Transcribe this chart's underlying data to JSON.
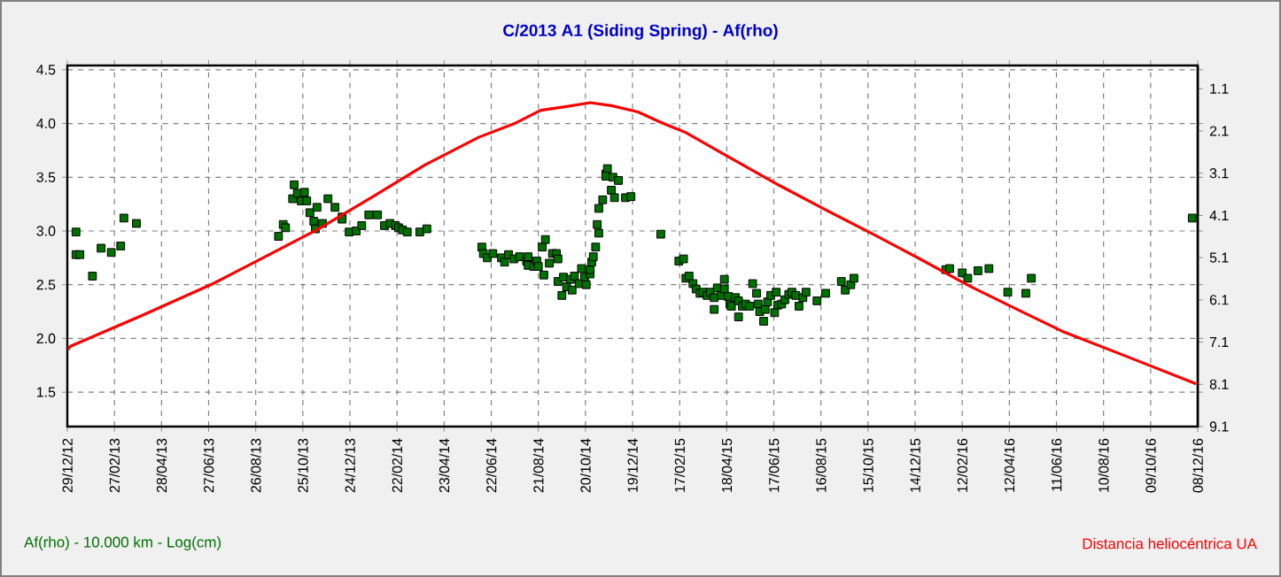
{
  "chart_data": {
    "type": "scatter",
    "title": "C/2013 A1 (Siding Spring) - Af(rho)",
    "legend": "bottom",
    "xlim": [
      "2012-12-29",
      "2016-12-08"
    ],
    "xticks": [
      {
        "value": "2012-12-29",
        "label": "29/12/12"
      },
      {
        "value": "2013-02-27",
        "label": "27/02/13"
      },
      {
        "value": "2013-04-28",
        "label": "28/04/13"
      },
      {
        "value": "2013-06-27",
        "label": "27/06/13"
      },
      {
        "value": "2013-08-26",
        "label": "26/08/13"
      },
      {
        "value": "2013-10-25",
        "label": "25/10/13"
      },
      {
        "value": "2013-12-24",
        "label": "24/12/13"
      },
      {
        "value": "2014-02-22",
        "label": "22/02/14"
      },
      {
        "value": "2014-04-23",
        "label": "23/04/14"
      },
      {
        "value": "2014-06-22",
        "label": "22/06/14"
      },
      {
        "value": "2014-08-21",
        "label": "21/08/14"
      },
      {
        "value": "2014-10-20",
        "label": "20/10/14"
      },
      {
        "value": "2014-12-19",
        "label": "19/12/14"
      },
      {
        "value": "2015-02-17",
        "label": "17/02/15"
      },
      {
        "value": "2015-04-18",
        "label": "18/04/15"
      },
      {
        "value": "2015-06-17",
        "label": "17/06/15"
      },
      {
        "value": "2015-08-16",
        "label": "16/08/15"
      },
      {
        "value": "2015-10-15",
        "label": "15/10/15"
      },
      {
        "value": "2015-12-14",
        "label": "14/12/15"
      },
      {
        "value": "2016-02-12",
        "label": "12/02/16"
      },
      {
        "value": "2016-04-12",
        "label": "12/04/16"
      },
      {
        "value": "2016-06-11",
        "label": "11/06/16"
      },
      {
        "value": "2016-08-10",
        "label": "10/08/16"
      },
      {
        "value": "2016-10-09",
        "label": "09/10/16"
      },
      {
        "value": "2016-12-08",
        "label": "08/12/16"
      }
    ],
    "ylim": [
      1.18,
      4.54
    ],
    "yticks": [
      {
        "value": 1.5,
        "label": "1.5"
      },
      {
        "value": 2,
        "label": "2.0"
      },
      {
        "value": 2.5,
        "label": "2.5"
      },
      {
        "value": 3,
        "label": "3.0"
      },
      {
        "value": 3.5,
        "label": "3.5"
      },
      {
        "value": 4,
        "label": "4.0"
      },
      {
        "value": 4.5,
        "label": "4.5"
      }
    ],
    "y2lim": [
      9.1,
      0.55
    ],
    "y2ticks": [
      1.1,
      2.1,
      3.1,
      4.1,
      5.1,
      6.1,
      7.1,
      8.1,
      9.1
    ],
    "grid": true,
    "series": [
      {
        "name": "Af(rho) - 10.000 km - Log(cm)",
        "marker": "square",
        "color": "#007000",
        "x": [
          "2013-01-09",
          "2013-01-09",
          "2013-01-14",
          "2013-01-30",
          "2013-02-10",
          "2013-02-23",
          "2013-03-07",
          "2013-03-11",
          "2013-03-27",
          "2013-09-24",
          "2013-09-30",
          "2013-10-03",
          "2013-10-14",
          "2013-10-12",
          "2013-10-18",
          "2013-10-27",
          "2013-10-23",
          "2013-10-30",
          "2013-11-03",
          "2013-11-08",
          "2013-11-10",
          "2013-11-12",
          "2013-11-19",
          "2013-11-26",
          "2013-12-05",
          "2013-12-14",
          "2013-12-14",
          "2013-12-23",
          "2014-01-01",
          "2014-01-08",
          "2014-01-17",
          "2014-01-28",
          "2014-02-06",
          "2014-02-13",
          "2014-02-20",
          "2014-02-24",
          "2014-03-01",
          "2014-03-07",
          "2014-03-23",
          "2014-04-01",
          "2014-06-10",
          "2014-06-12",
          "2014-06-17",
          "2014-06-24",
          "2014-07-05",
          "2014-07-09",
          "2014-07-14",
          "2014-07-21",
          "2014-07-28",
          "2014-08-06",
          "2014-08-08",
          "2014-08-08",
          "2014-08-15",
          "2014-08-19",
          "2014-08-21",
          "2014-08-26",
          "2014-08-28",
          "2014-08-30",
          "2014-09-04",
          "2014-09-08",
          "2014-09-13",
          "2014-09-15",
          "2014-09-15",
          "2014-09-22",
          "2014-09-20",
          "2014-09-26",
          "2014-10-01",
          "2014-10-03",
          "2014-10-06",
          "2014-10-12",
          "2014-10-15",
          "2014-10-19",
          "2014-10-21",
          "2014-10-26",
          "2014-10-26",
          "2014-10-28",
          "2014-10-30",
          "2014-11-02",
          "2014-11-04",
          "2014-11-06",
          "2014-11-06",
          "2014-11-11",
          "2014-11-15",
          "2014-11-17",
          "2014-11-15",
          "2014-11-24",
          "2014-11-22",
          "2014-11-26",
          "2014-12-01",
          "2014-12-10",
          "2014-12-17",
          "2015-01-24",
          "2015-02-16",
          "2015-02-22",
          "2015-02-25",
          "2015-03-01",
          "2015-03-06",
          "2015-03-10",
          "2015-03-15",
          "2015-03-19",
          "2015-03-24",
          "2015-03-28",
          "2015-04-02",
          "2015-04-02",
          "2015-04-06",
          "2015-04-11",
          "2015-04-15",
          "2015-04-15",
          "2015-04-20",
          "2015-04-22",
          "2015-04-24",
          "2015-04-29",
          "2015-05-03",
          "2015-05-03",
          "2015-05-08",
          "2015-05-12",
          "2015-05-17",
          "2015-05-21",
          "2015-05-26",
          "2015-05-28",
          "2015-05-30",
          "2015-06-04",
          "2015-06-06",
          "2015-06-09",
          "2015-06-13",
          "2015-06-18",
          "2015-06-20",
          "2015-06-22",
          "2015-06-27",
          "2015-07-01",
          "2015-07-06",
          "2015-07-10",
          "2015-07-15",
          "2015-07-19",
          "2015-07-24",
          "2015-07-28",
          "2015-08-11",
          "2015-08-22",
          "2015-09-11",
          "2015-09-16",
          "2015-09-23",
          "2015-09-27",
          "2016-01-22",
          "2016-01-27",
          "2016-02-12",
          "2016-02-19",
          "2016-03-03",
          "2016-03-17",
          "2016-04-10",
          "2016-05-03",
          "2016-05-10",
          "2016-12-01"
        ],
        "values": [
          2.99,
          2.78,
          2.78,
          2.58,
          2.84,
          2.8,
          2.86,
          3.12,
          3.07,
          2.95,
          3.06,
          3.03,
          3.43,
          3.3,
          3.35,
          3.36,
          3.28,
          3.28,
          3.17,
          3.09,
          3.02,
          3.22,
          3.07,
          3.3,
          3.22,
          3.13,
          3.11,
          2.99,
          3.0,
          3.05,
          3.15,
          3.15,
          3.05,
          3.07,
          3.05,
          3.03,
          3.01,
          2.99,
          2.99,
          3.02,
          2.85,
          2.79,
          2.75,
          2.79,
          2.75,
          2.71,
          2.78,
          2.74,
          2.76,
          2.72,
          2.76,
          2.68,
          2.67,
          2.72,
          2.67,
          2.85,
          2.59,
          2.92,
          2.7,
          2.79,
          2.79,
          2.74,
          2.53,
          2.57,
          2.4,
          2.48,
          2.55,
          2.45,
          2.58,
          2.51,
          2.65,
          2.57,
          2.5,
          2.6,
          2.64,
          2.71,
          2.76,
          2.85,
          3.06,
          2.98,
          3.21,
          3.29,
          3.53,
          3.58,
          3.51,
          3.5,
          3.38,
          3.31,
          3.47,
          3.31,
          3.32,
          2.97,
          2.72,
          2.74,
          2.56,
          2.58,
          2.51,
          2.46,
          2.42,
          2.43,
          2.4,
          2.43,
          2.38,
          2.27,
          2.47,
          2.4,
          2.55,
          2.46,
          2.39,
          2.32,
          2.3,
          2.38,
          2.35,
          2.2,
          2.3,
          2.32,
          2.3,
          2.51,
          2.42,
          2.32,
          2.25,
          2.16,
          2.27,
          2.34,
          2.4,
          2.24,
          2.43,
          2.31,
          2.32,
          2.36,
          2.41,
          2.43,
          2.4,
          2.3,
          2.38,
          2.43,
          2.35,
          2.42,
          2.53,
          2.45,
          2.5,
          2.56,
          2.64,
          2.65,
          2.61,
          2.56,
          2.63,
          2.65,
          2.43,
          2.42,
          2.56,
          3.12
        ]
      },
      {
        "name": "Distancia heliocéntrica UA",
        "type": "line",
        "axis": "y2",
        "marker": "none",
        "color": "#ff0000",
        "x": [
          "2012-12-29",
          "2013-01-02",
          "2013-04-03",
          "2013-07-02",
          "2013-09-08",
          "2013-11-13",
          "2014-01-21",
          "2014-03-30",
          "2014-06-06",
          "2014-07-21",
          "2014-08-24",
          "2014-09-26",
          "2014-10-26",
          "2014-11-22",
          "2014-12-26",
          "2015-01-22",
          "2015-02-25",
          "2015-04-18",
          "2015-06-24",
          "2015-08-22",
          "2015-10-22",
          "2015-12-22",
          "2016-02-20",
          "2016-04-19",
          "2016-06-18",
          "2016-09-18",
          "2016-12-06"
        ],
        "values": [
          7.28,
          7.2,
          6.47,
          5.72,
          5.07,
          4.43,
          3.67,
          2.9,
          2.25,
          1.93,
          1.61,
          1.52,
          1.43,
          1.5,
          1.65,
          1.88,
          2.14,
          2.69,
          3.39,
          3.97,
          4.55,
          5.15,
          5.76,
          6.3,
          6.84,
          7.51,
          8.09
        ]
      }
    ]
  }
}
